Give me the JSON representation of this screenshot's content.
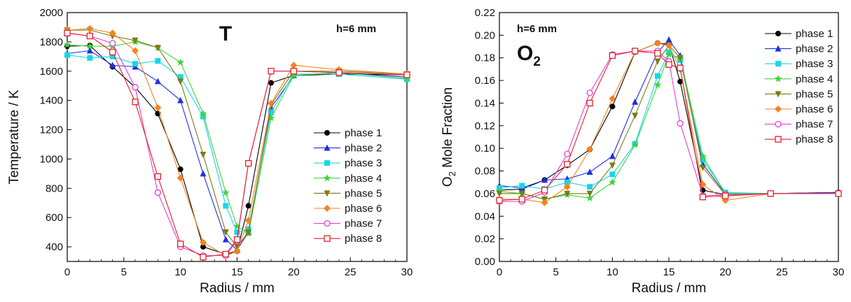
{
  "chart_data": [
    {
      "type": "line",
      "title": "T",
      "annotation": "h=6 mm",
      "xlabel": "Radius / mm",
      "ylabel": "Temperature / K",
      "xlim": [
        0,
        30
      ],
      "ylim": [
        300,
        2000
      ],
      "xticks": [
        0,
        5,
        10,
        15,
        20,
        25,
        30
      ],
      "yticks": [
        400,
        600,
        800,
        1000,
        1200,
        1400,
        1600,
        1800,
        2000
      ],
      "legend": "center-right",
      "series": [
        {
          "name": "phase 1",
          "color": "#000000",
          "marker": "circle",
          "x": [
            0,
            2,
            4,
            6,
            8,
            10,
            12,
            14,
            15,
            16,
            18,
            20,
            24,
            30
          ],
          "y": [
            1770,
            1775,
            1630,
            1490,
            1310,
            930,
            400,
            350,
            370,
            680,
            1520,
            1570,
            1580,
            1575
          ]
        },
        {
          "name": "phase 2",
          "color": "#1f2fe0",
          "marker": "triangle",
          "x": [
            0,
            2,
            4,
            6,
            8,
            10,
            12,
            14,
            15,
            16,
            18,
            20,
            24,
            30
          ],
          "y": [
            1720,
            1740,
            1640,
            1630,
            1530,
            1400,
            900,
            450,
            380,
            500,
            1350,
            1570,
            1590,
            1560
          ]
        },
        {
          "name": "phase 3",
          "color": "#14d8e8",
          "marker": "square",
          "x": [
            0,
            2,
            4,
            6,
            8,
            10,
            12,
            14,
            15,
            16,
            18,
            20,
            24,
            30
          ],
          "y": [
            1710,
            1690,
            1700,
            1650,
            1670,
            1560,
            1290,
            680,
            500,
            520,
            1320,
            1580,
            1580,
            1545
          ]
        },
        {
          "name": "phase 4",
          "color": "#3ed43e",
          "marker": "star",
          "x": [
            0,
            2,
            4,
            6,
            8,
            10,
            12,
            14,
            15,
            16,
            18,
            20,
            24,
            30
          ],
          "y": [
            1780,
            1770,
            1770,
            1800,
            1760,
            1660,
            1310,
            770,
            540,
            490,
            1280,
            1570,
            1590,
            1550
          ]
        },
        {
          "name": "phase 5",
          "color": "#7b7b14",
          "marker": "triangle-down",
          "x": [
            0,
            2,
            4,
            6,
            8,
            10,
            12,
            14,
            15,
            16,
            18,
            20,
            24,
            30
          ],
          "y": [
            1880,
            1880,
            1840,
            1810,
            1760,
            1530,
            1030,
            500,
            400,
            500,
            1370,
            1600,
            1600,
            1580
          ]
        },
        {
          "name": "phase 6",
          "color": "#f58220",
          "marker": "diamond",
          "x": [
            0,
            2,
            4,
            6,
            8,
            10,
            12,
            14,
            15,
            16,
            18,
            20,
            24,
            30
          ],
          "y": [
            1880,
            1890,
            1860,
            1740,
            1350,
            870,
            430,
            340,
            370,
            580,
            1380,
            1640,
            1610,
            1580
          ]
        },
        {
          "name": "phase 7",
          "color": "#e83ed8",
          "marker": "open-circle",
          "x": [
            0,
            2,
            4,
            6,
            8,
            10,
            12,
            14,
            15,
            16,
            18,
            20,
            24,
            30
          ],
          "y": [
            1860,
            1840,
            1790,
            1490,
            770,
            400,
            340,
            340,
            440,
            970,
            1600,
            1600,
            1590,
            1575
          ]
        },
        {
          "name": "phase 8",
          "color": "#e0202a",
          "marker": "open-square",
          "x": [
            0,
            2,
            4,
            6,
            8,
            10,
            12,
            14,
            15,
            16,
            18,
            20,
            24,
            30
          ],
          "y": [
            1860,
            1840,
            1730,
            1390,
            880,
            420,
            330,
            350,
            450,
            970,
            1600,
            1600,
            1590,
            1575
          ]
        }
      ]
    },
    {
      "type": "line",
      "title": "O2",
      "annotation": "h=6 mm",
      "xlabel": "Radius / mm",
      "ylabel": "O2 Mole Fraction",
      "xlim": [
        0,
        30
      ],
      "ylim": [
        0,
        0.22
      ],
      "xticks": [
        0,
        5,
        10,
        15,
        20,
        25,
        30
      ],
      "yticks": [
        "0.00",
        "0.02",
        "0.04",
        "0.06",
        "0.08",
        "0.10",
        "0.12",
        "0.14",
        "0.16",
        "0.18",
        "0.20",
        "0.22"
      ],
      "legend": "top-right",
      "series": [
        {
          "name": "phase 1",
          "color": "#000000",
          "marker": "circle",
          "x": [
            0,
            2,
            4,
            6,
            8,
            10,
            12,
            14,
            15,
            16,
            18,
            20,
            24,
            30
          ],
          "y": [
            0.063,
            0.064,
            0.072,
            0.085,
            0.099,
            0.137,
            0.185,
            0.193,
            0.192,
            0.159,
            0.063,
            0.059,
            0.06,
            0.061
          ]
        },
        {
          "name": "phase 2",
          "color": "#1f2fe0",
          "marker": "triangle",
          "x": [
            0,
            2,
            4,
            6,
            8,
            10,
            12,
            14,
            15,
            16,
            18,
            20,
            24,
            30
          ],
          "y": [
            0.067,
            0.065,
            0.072,
            0.073,
            0.079,
            0.093,
            0.141,
            0.185,
            0.196,
            0.182,
            0.086,
            0.06,
            0.06,
            0.061
          ]
        },
        {
          "name": "phase 3",
          "color": "#14d8e8",
          "marker": "square",
          "x": [
            0,
            2,
            4,
            6,
            8,
            10,
            12,
            14,
            15,
            16,
            18,
            20,
            24,
            30
          ],
          "y": [
            0.065,
            0.067,
            0.064,
            0.07,
            0.066,
            0.077,
            0.104,
            0.164,
            0.185,
            0.178,
            0.09,
            0.061,
            0.06,
            0.06
          ]
        },
        {
          "name": "phase 4",
          "color": "#3ed43e",
          "marker": "star",
          "x": [
            0,
            2,
            4,
            6,
            8,
            10,
            12,
            14,
            15,
            16,
            18,
            20,
            24,
            30
          ],
          "y": [
            0.062,
            0.06,
            0.055,
            0.059,
            0.056,
            0.07,
            0.103,
            0.156,
            0.183,
            0.18,
            0.093,
            0.06,
            0.06,
            0.06
          ]
        },
        {
          "name": "phase 5",
          "color": "#7b7b14",
          "marker": "triangle-down",
          "x": [
            0,
            2,
            4,
            6,
            8,
            10,
            12,
            14,
            15,
            16,
            18,
            20,
            24,
            30
          ],
          "y": [
            0.06,
            0.06,
            0.055,
            0.06,
            0.06,
            0.085,
            0.129,
            0.177,
            0.191,
            0.18,
            0.083,
            0.059,
            0.06,
            0.06
          ]
        },
        {
          "name": "phase 6",
          "color": "#f58220",
          "marker": "diamond",
          "x": [
            0,
            2,
            4,
            6,
            8,
            10,
            12,
            14,
            15,
            16,
            18,
            20,
            24,
            30
          ],
          "y": [
            0.055,
            0.055,
            0.052,
            0.066,
            0.099,
            0.144,
            0.185,
            0.193,
            0.191,
            0.17,
            0.068,
            0.054,
            0.06,
            0.06
          ]
        },
        {
          "name": "phase 7",
          "color": "#e83ed8",
          "marker": "open-circle",
          "x": [
            0,
            2,
            4,
            6,
            8,
            10,
            12,
            14,
            15,
            16,
            18,
            20,
            24,
            30
          ],
          "y": [
            0.053,
            0.053,
            0.061,
            0.095,
            0.149,
            0.183,
            0.186,
            0.186,
            0.177,
            0.122,
            0.058,
            0.059,
            0.06,
            0.06
          ]
        },
        {
          "name": "phase 8",
          "color": "#e0202a",
          "marker": "open-square",
          "x": [
            0,
            2,
            4,
            6,
            8,
            10,
            12,
            14,
            15,
            16,
            18,
            20,
            24,
            30
          ],
          "y": [
            0.054,
            0.055,
            0.063,
            0.086,
            0.14,
            0.182,
            0.186,
            0.184,
            0.174,
            0.171,
            0.057,
            0.058,
            0.06,
            0.06
          ]
        }
      ]
    }
  ]
}
